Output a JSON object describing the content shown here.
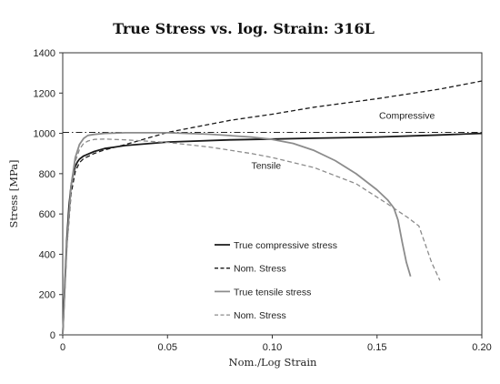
{
  "chart_data": {
    "type": "line",
    "title": "True Stress vs. log. Strain: 316L",
    "xlabel": "Nom./Log Strain",
    "ylabel": "Stress [MPa]",
    "xlim": [
      0,
      0.2
    ],
    "ylim": [
      0,
      1400
    ],
    "x_ticks": [
      "0",
      "0.05",
      "0.10",
      "0.15",
      "0.20"
    ],
    "y_ticks": [
      "0",
      "200",
      "400",
      "600",
      "800",
      "1000",
      "1200",
      "1400"
    ],
    "grid": false,
    "legend_position": "center-left",
    "reference_line": {
      "y": 1005,
      "style": "dash-dot"
    },
    "annotations": [
      {
        "text": "Compressive",
        "x": 0.151,
        "y": 1072
      },
      {
        "text": "Tensile",
        "x": 0.09,
        "y": 825
      }
    ],
    "series": [
      {
        "name": "True compressive stress",
        "style": "solid",
        "color": "#1a1a1a",
        "x": [
          0,
          0.001,
          0.002,
          0.003,
          0.004,
          0.005,
          0.006,
          0.007,
          0.008,
          0.01,
          0.015,
          0.02,
          0.03,
          0.05,
          0.08,
          0.1,
          0.12,
          0.15,
          0.18,
          0.2
        ],
        "y": [
          0,
          250,
          480,
          640,
          740,
          800,
          835,
          858,
          872,
          888,
          910,
          925,
          940,
          957,
          968,
          972,
          976,
          982,
          992,
          1000
        ]
      },
      {
        "name": "Nom. Stress",
        "style": "dashed",
        "color": "#1a1a1a",
        "x": [
          0,
          0.002,
          0.004,
          0.006,
          0.008,
          0.01,
          0.015,
          0.02,
          0.03,
          0.05,
          0.08,
          0.1,
          0.12,
          0.15,
          0.18,
          0.2
        ],
        "y": [
          0,
          440,
          700,
          810,
          855,
          875,
          900,
          918,
          945,
          1005,
          1065,
          1095,
          1130,
          1172,
          1220,
          1260
        ]
      },
      {
        "name": "True tensile stress",
        "style": "solid",
        "color": "#8c8c8c",
        "x": [
          0,
          0.002,
          0.004,
          0.006,
          0.008,
          0.01,
          0.012,
          0.015,
          0.02,
          0.03,
          0.05,
          0.07,
          0.09,
          0.1,
          0.11,
          0.12,
          0.13,
          0.14,
          0.15,
          0.155,
          0.158,
          0.16,
          0.162,
          0.164,
          0.166
        ],
        "y": [
          0,
          450,
          740,
          880,
          945,
          975,
          990,
          995,
          1000,
          1003,
          1003,
          996,
          982,
          970,
          950,
          915,
          865,
          800,
          720,
          670,
          630,
          570,
          460,
          360,
          290
        ]
      },
      {
        "name": "Nom. Stress",
        "style": "dashed",
        "color": "#8c8c8c",
        "x": [
          0,
          0.002,
          0.004,
          0.006,
          0.008,
          0.01,
          0.012,
          0.015,
          0.02,
          0.03,
          0.05,
          0.07,
          0.09,
          0.1,
          0.12,
          0.14,
          0.155,
          0.165,
          0.17,
          0.173,
          0.176,
          0.18
        ],
        "y": [
          0,
          450,
          730,
          860,
          920,
          950,
          962,
          970,
          972,
          968,
          955,
          932,
          900,
          880,
          830,
          750,
          650,
          580,
          540,
          450,
          360,
          270
        ]
      }
    ]
  }
}
